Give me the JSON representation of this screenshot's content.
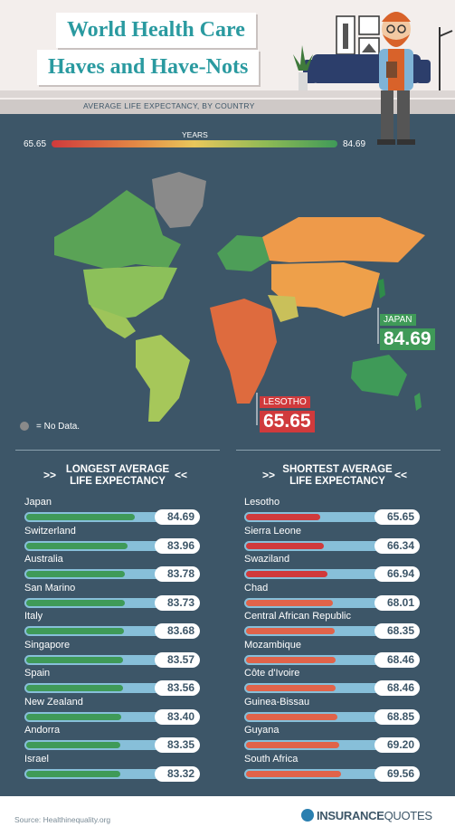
{
  "title": {
    "line1": "World Health Care",
    "line2": "Haves and Have-Nots"
  },
  "subtitle": "AVERAGE LIFE EXPECTANCY, BY COUNTRY",
  "legend": {
    "unit": "YEARS",
    "min": "65.65",
    "max": "84.69",
    "no_data": "= No Data."
  },
  "callouts": {
    "japan": {
      "name": "JAPAN",
      "value": "84.69"
    },
    "lesotho": {
      "name": "LESOTHO",
      "value": "65.65"
    }
  },
  "colors": {
    "background": "#3d5668",
    "high": "#3f9a58",
    "low": "#d03a3c",
    "track": "#87bfd9",
    "no_data": "#8a8a8a"
  },
  "chart_data": [
    {
      "type": "bar",
      "title": "LONGEST AVERAGE LIFE EXPECTANCY",
      "categories": [
        "Japan",
        "Switzerland",
        "Australia",
        "San Marino",
        "Italy",
        "Singapore",
        "Spain",
        "New Zealand",
        "Andorra",
        "Israel"
      ],
      "values": [
        84.69,
        83.96,
        83.78,
        83.73,
        83.68,
        83.57,
        83.56,
        83.4,
        83.35,
        83.32
      ],
      "labels": [
        "84.69",
        "83.96",
        "83.78",
        "83.73",
        "83.68",
        "83.57",
        "83.56",
        "83.40",
        "83.35",
        "83.32"
      ]
    },
    {
      "type": "bar",
      "title": "SHORTEST AVERAGE LIFE EXPECTANCY",
      "categories": [
        "Lesotho",
        "Sierra Leone",
        "Swaziland",
        "Chad",
        "Central African Republic",
        "Mozambique",
        "Côte d'Ivoire",
        "Guinea-Bissau",
        "Guyana",
        "South Africa"
      ],
      "values": [
        65.65,
        66.34,
        66.94,
        68.01,
        68.35,
        68.46,
        68.46,
        68.85,
        69.2,
        69.56
      ],
      "labels": [
        "65.65",
        "66.34",
        "66.94",
        "68.01",
        "68.35",
        "68.46",
        "68.46",
        "68.85",
        "69.20",
        "69.56"
      ]
    }
  ],
  "sections": {
    "left": {
      "line1": "LONGEST AVERAGE",
      "line2": "LIFE EXPECTANCY"
    },
    "right": {
      "line1": "SHORTEST AVERAGE",
      "line2": "LIFE EXPECTANCY"
    },
    "arrow_open": ">>",
    "arrow_close": "<<"
  },
  "footer": {
    "source": "Source: Healthinequality.org",
    "logo_a": "INSURANCE",
    "logo_b": "QUOTES"
  }
}
